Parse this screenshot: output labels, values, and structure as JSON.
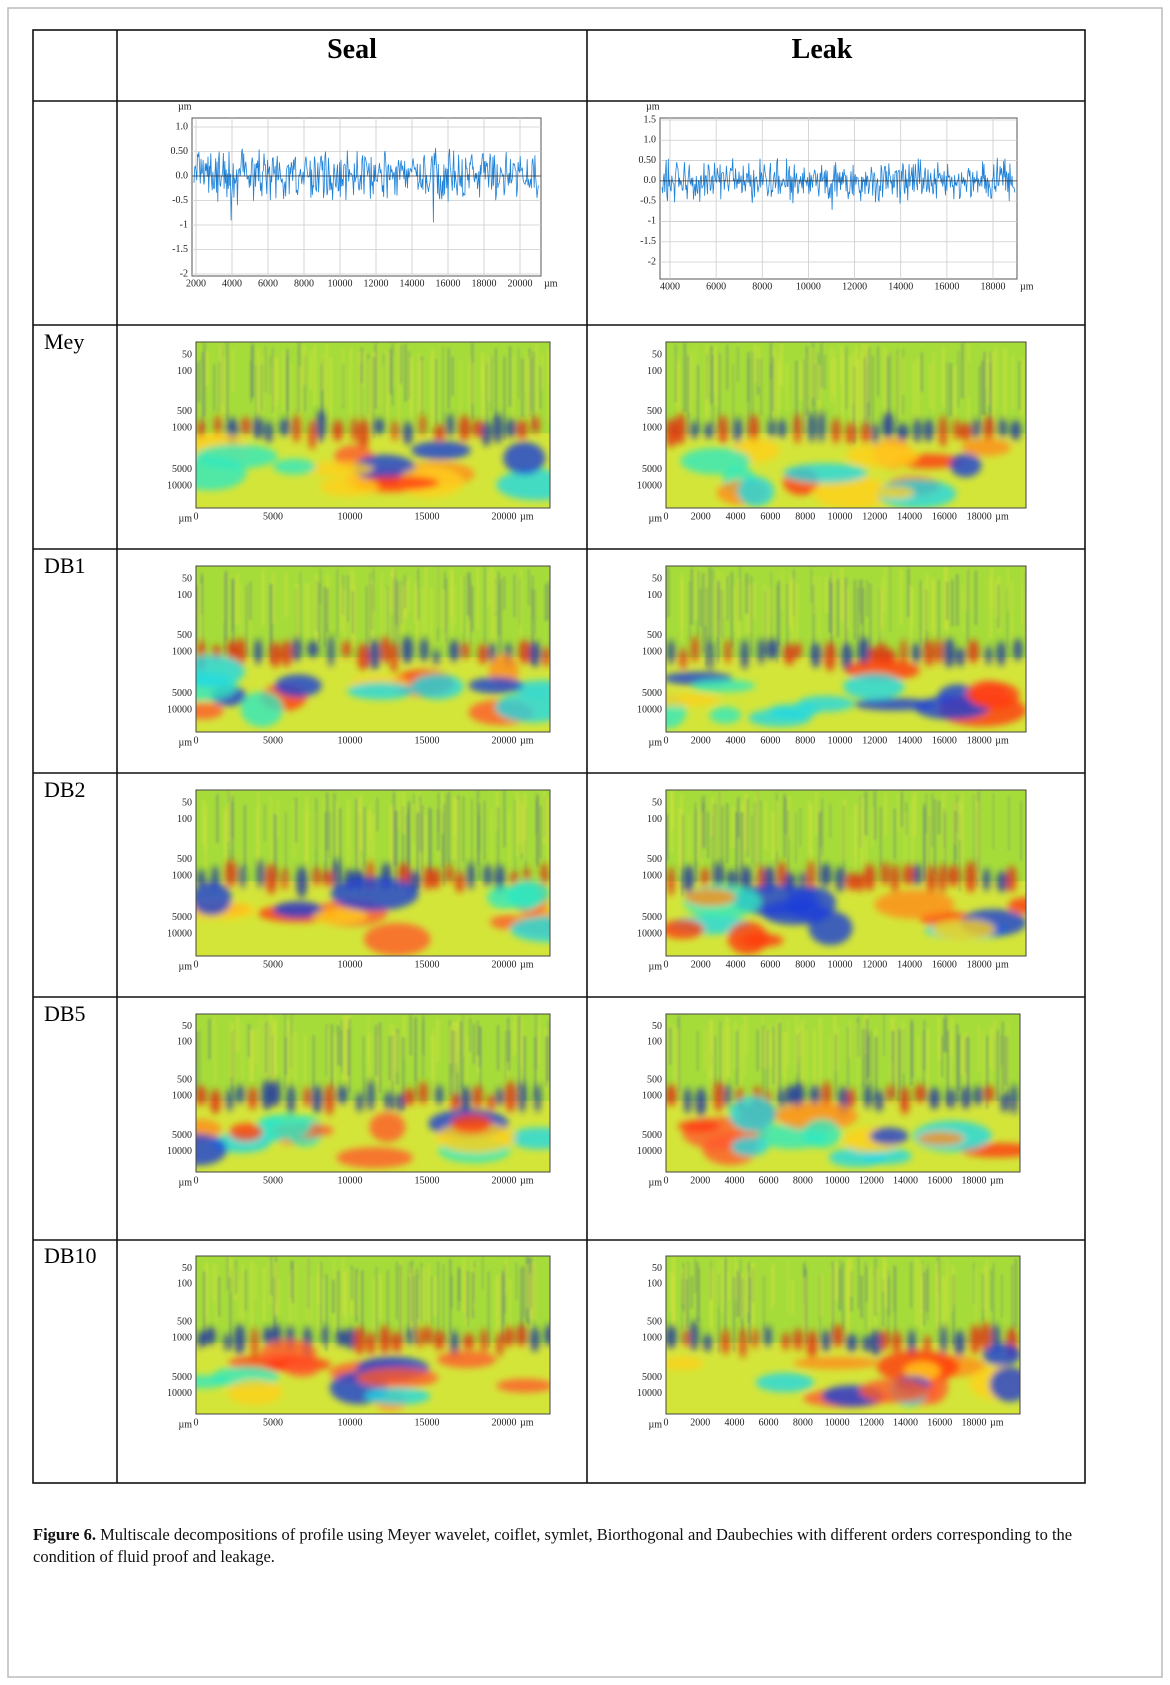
{
  "table": {
    "header": [
      "Seal",
      "Leak"
    ],
    "profile": {
      "seal": {
        "y_unit": "µm",
        "yticks": [
          "1.0",
          "0.50",
          "0.0",
          "-0.5",
          "-1",
          "-1.5",
          "-2"
        ],
        "xticks": [
          "2000",
          "4000",
          "6000",
          "8000",
          "10000",
          "12000",
          "14000",
          "16000",
          "18000",
          "20000"
        ],
        "x_unit": "µm"
      },
      "leak": {
        "y_unit": "µm",
        "yticks": [
          "1.5",
          "1.0",
          "0.50",
          "0.0",
          "-0.5",
          "-1",
          "-1.5",
          "-2"
        ],
        "xticks": [
          "4000",
          "6000",
          "8000",
          "10000",
          "12000",
          "14000",
          "16000",
          "18000"
        ],
        "x_unit": "µm"
      }
    },
    "scalogram_axes": {
      "unit": "µm",
      "yticks": [
        "50",
        "100",
        "500",
        "1000",
        "5000",
        "10000"
      ],
      "seal_xticks": [
        "0",
        "5000",
        "10000",
        "15000",
        "20000"
      ],
      "leak_xticks": [
        "0",
        "2000",
        "4000",
        "6000",
        "8000",
        "10000",
        "12000",
        "14000",
        "16000",
        "18000"
      ]
    },
    "rows": [
      "Mey",
      "DB1",
      "DB2",
      "DB5",
      "DB10"
    ]
  },
  "caption": {
    "label": "Figure 6.",
    "text": "Multiscale decompositions of profile using Meyer wavelet, coiflet, symlet, Biorthogonal and Daubechies with different orders corresponding to the condition of fluid proof and leakage."
  }
}
